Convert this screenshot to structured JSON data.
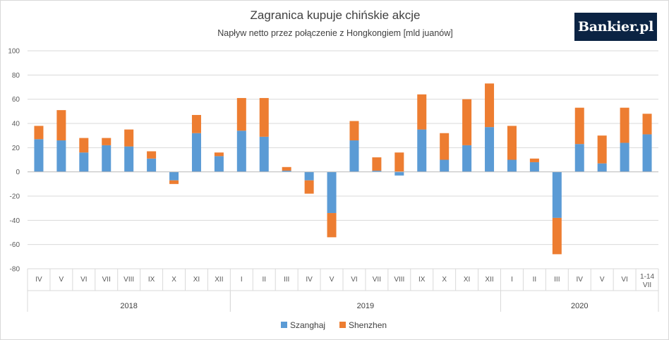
{
  "logo": {
    "text": "Bankier.pl"
  },
  "chart_data": {
    "type": "bar",
    "stacked": true,
    "title": "Zagranica kupuje chińskie akcje",
    "subtitle": "Napływ netto przez połączenie z Hongkongiem [mld juanów]",
    "ylim": [
      -80,
      100
    ],
    "yticks": [
      -80,
      -60,
      -40,
      -20,
      0,
      20,
      40,
      60,
      80,
      100
    ],
    "grid": true,
    "legend": "bottom",
    "categories": [
      "IV",
      "V",
      "VI",
      "VII",
      "VIII",
      "IX",
      "X",
      "XI",
      "XII",
      "I",
      "II",
      "III",
      "IV",
      "V",
      "VI",
      "VII",
      "VIII",
      "IX",
      "X",
      "XI",
      "XII",
      "I",
      "II",
      "III",
      "IV",
      "V",
      "VI",
      "1-14 VII"
    ],
    "groups": [
      {
        "label": "2018",
        "start": 0,
        "end": 8
      },
      {
        "label": "2019",
        "start": 9,
        "end": 20
      },
      {
        "label": "2020",
        "start": 21,
        "end": 27
      }
    ],
    "series": [
      {
        "name": "Szanghaj",
        "color": "#5b9bd5",
        "values": [
          27,
          26,
          16,
          22,
          21,
          11,
          -7,
          32,
          13,
          34,
          29,
          1,
          -7,
          -34,
          26,
          1,
          -3,
          35,
          10,
          22,
          37,
          10,
          8,
          -38,
          23,
          7,
          24,
          31
        ]
      },
      {
        "name": "Shenzhen",
        "color": "#ed7d31",
        "values": [
          11,
          25,
          12,
          6,
          14,
          6,
          -3,
          15,
          3,
          27,
          32,
          3,
          -11,
          -20,
          16,
          11,
          16,
          29,
          22,
          38,
          36,
          28,
          3,
          -30,
          30,
          23,
          29,
          17
        ]
      }
    ]
  }
}
